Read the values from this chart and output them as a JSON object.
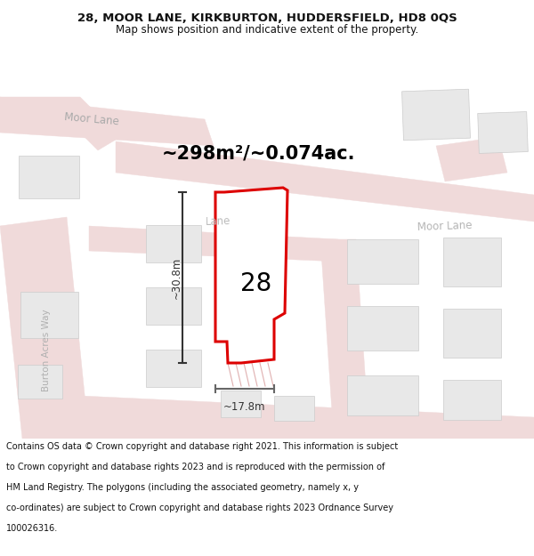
{
  "title_line1": "28, MOOR LANE, KIRKBURTON, HUDDERSFIELD, HD8 0QS",
  "title_line2": "Map shows position and indicative extent of the property.",
  "area_label": "~298m²/~0.074ac.",
  "number_label": "28",
  "dim_height": "~30.8m",
  "dim_width": "~17.8m",
  "footer_lines": [
    "Contains OS data © Crown copyright and database right 2021. This information is subject",
    "to Crown copyright and database rights 2023 and is reproduced with the permission of",
    "HM Land Registry. The polygons (including the associated geometry, namely x, y",
    "co-ordinates) are subject to Crown copyright and database rights 2023 Ordnance Survey",
    "100026316."
  ],
  "map_bg": "#f7f7f7",
  "road_fill_color": "#f0dada",
  "road_outline_color": "#e8b0b0",
  "road_center_color": "#e8a8a8",
  "building_fill": "#e8e8e8",
  "building_edge": "#cccccc",
  "plot_color": "#dd0000",
  "plot_fill": "#ffffff",
  "text_dark": "#111111",
  "text_road": "#b0b0b0",
  "title_bg": "#ffffff",
  "footer_bg": "#ffffff",
  "dim_color": "#333333"
}
